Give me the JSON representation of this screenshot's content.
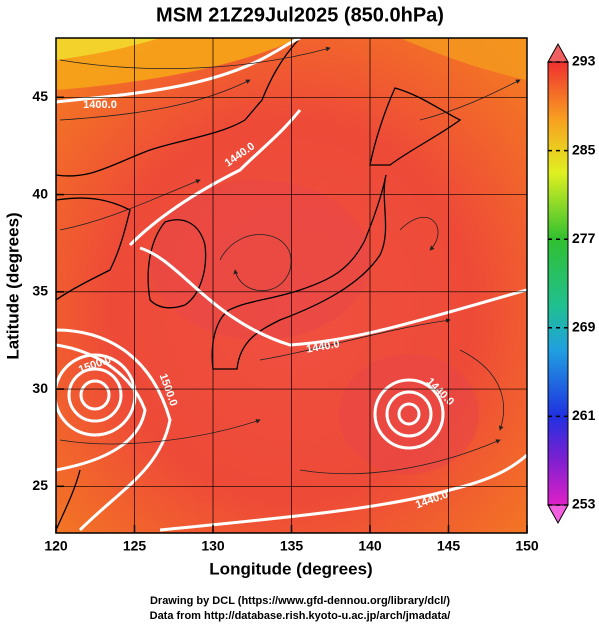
{
  "title": "MSM 21Z29Jul2025 (850.0hPa)",
  "xlabel": "Longitude (degrees)",
  "ylabel": "Latitude  (degrees)",
  "xlim": [
    120,
    150
  ],
  "xticks": [
    120,
    125,
    130,
    135,
    140,
    145,
    150
  ],
  "ylim": [
    22.6,
    48.05
  ],
  "yticks": [
    25,
    30,
    35,
    40,
    45
  ],
  "colorbar": {
    "lim": [
      253,
      293
    ],
    "ticks": [
      253,
      261,
      269,
      277,
      285,
      293
    ]
  },
  "contour_labels": [
    "1400.0",
    "1440.0",
    "1440.0",
    "1500.0",
    "1500.0",
    "1440.0",
    "1440.0"
  ],
  "footer": [
    "Drawing by DCL (https://www.gfd-dennou.org/library/dcl/)",
    "Data from http://database.rish.kyoto-u.ac.jp/arch/jmadata/"
  ]
}
